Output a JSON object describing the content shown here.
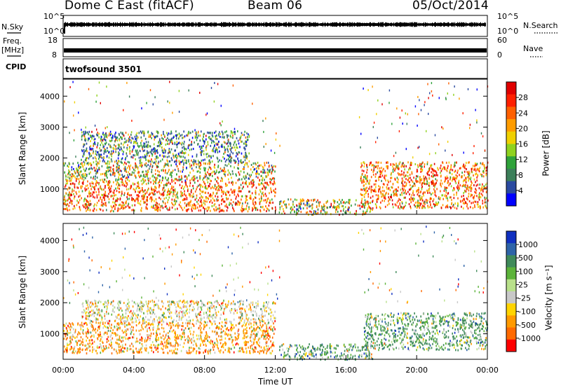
{
  "header": {
    "title": "Dome C East (fitACF)",
    "beam": "Beam 06",
    "date": "05/Oct/2014"
  },
  "sidebar": {
    "nsky_label": "N.Sky",
    "freq_label_1": "Freq.",
    "freq_label_2": "[MHz]",
    "cpid_label": "CPID",
    "nsearch_label": "N.Search",
    "nave_label": "Nave",
    "nsky_ticks": [
      "10^5",
      "10^0"
    ],
    "nsearch_ticks": [
      "10^5",
      "10^0"
    ],
    "freq_ticks": [
      "18",
      "8"
    ],
    "nave_ticks": [
      "60",
      "0"
    ],
    "cpid_text": "twofsound 3501"
  },
  "colors": {
    "power_scale": [
      "#0000ff",
      "#2a4aa0",
      "#3c7f5a",
      "#2fa23a",
      "#8fd21f",
      "#f0d000",
      "#ff9c00",
      "#ff6000",
      "#ff2000",
      "#e00000"
    ],
    "velocity_scale": [
      "#1030c0",
      "#2e64a8",
      "#3f8a5a",
      "#5cb33a",
      "#b8e08a",
      "#c8c8c8",
      "#ffd400",
      "#ff9a00",
      "#ff6a00",
      "#ff0000"
    ]
  },
  "chart_data": [
    {
      "type": "heatmap",
      "name": "power",
      "ylabel": "Slant Range [km]",
      "yticks": [
        "1000",
        "2000",
        "3000",
        "4000"
      ],
      "ylim": [
        180,
        4550
      ],
      "xlim": [
        0,
        24
      ],
      "xticks": [
        "00:00",
        "04:00",
        "08:00",
        "12:00",
        "16:00",
        "20:00",
        "00:00"
      ],
      "colorbar": {
        "label": "Power [dB]",
        "ticks": [
          "4",
          "8",
          "12",
          "16",
          "20",
          "24",
          "28"
        ],
        "range": [
          0,
          32
        ]
      },
      "bands": [
        {
          "t0": 0.0,
          "t1": 12.0,
          "r0": 300,
          "r1": 1300,
          "dominant": "high"
        },
        {
          "t0": 0.0,
          "t1": 12.0,
          "r0": 1300,
          "r1": 1900,
          "dominant": "mid"
        },
        {
          "t0": 1.0,
          "t1": 10.5,
          "r0": 1900,
          "r1": 2900,
          "dominant": "low"
        },
        {
          "t0": 12.2,
          "t1": 17.5,
          "r0": 200,
          "r1": 700,
          "dominant": "mid"
        },
        {
          "t0": 16.8,
          "t1": 24.0,
          "r0": 400,
          "r1": 1900,
          "dominant": "high"
        }
      ]
    },
    {
      "type": "heatmap",
      "name": "velocity",
      "ylabel": "Slant Range [km]",
      "yticks": [
        "1000",
        "2000",
        "3000",
        "4000"
      ],
      "ylim": [
        180,
        4550
      ],
      "xlim": [
        0,
        24
      ],
      "xlabel": "Time UT",
      "xticks": [
        "00:00",
        "04:00",
        "08:00",
        "12:00",
        "16:00",
        "20:00",
        "00:00"
      ],
      "colorbar": {
        "label": "Velocity [m s⁻¹]",
        "ticks": [
          "1000",
          "500",
          "100",
          "25",
          "-25",
          "-100",
          "-500",
          "-1000"
        ],
        "range": [
          -1200,
          1200
        ]
      },
      "bands": [
        {
          "t0": 0.0,
          "t1": 12.0,
          "r0": 400,
          "r1": 1400,
          "dominant": "negative"
        },
        {
          "t0": 1.0,
          "t1": 12.0,
          "r0": 1400,
          "r1": 2100,
          "dominant": "near-zero"
        },
        {
          "t0": 12.2,
          "t1": 17.5,
          "r0": 200,
          "r1": 700,
          "dominant": "positive"
        },
        {
          "t0": 17.0,
          "t1": 24.0,
          "r0": 500,
          "r1": 1700,
          "dominant": "positive"
        }
      ]
    }
  ]
}
